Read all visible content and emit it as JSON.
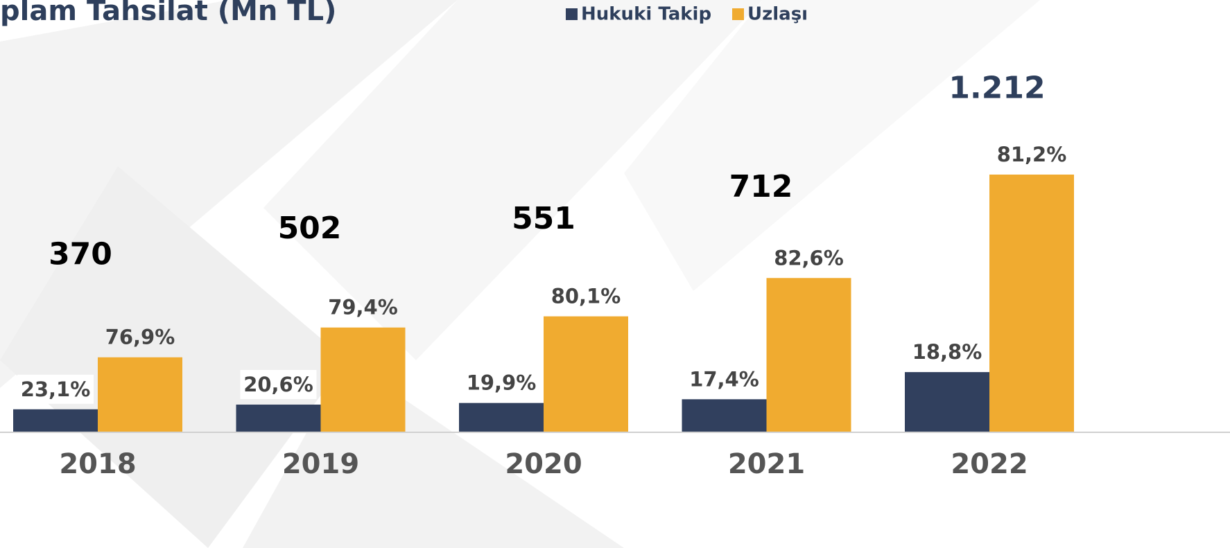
{
  "chart_data": {
    "type": "bar",
    "title": "plam Tahsilat (Mn TL)",
    "categories": [
      "2018",
      "2019",
      "2020",
      "2021",
      "2022"
    ],
    "totals": [
      370,
      502,
      551,
      712,
      1212
    ],
    "totals_labels": [
      "370",
      "502",
      "551",
      "712",
      "1.212"
    ],
    "series": [
      {
        "name": "Hukuki Takip",
        "color": "#31405e",
        "values": [
          23.1,
          20.6,
          19.9,
          17.4,
          18.8
        ],
        "value_labels": [
          "23,1%",
          "20,6%",
          "19,9%",
          "17,4%",
          "18,8%"
        ]
      },
      {
        "name": "Uzlaşı",
        "color": "#f0ab30",
        "values": [
          76.9,
          79.4,
          80.1,
          82.6,
          81.2
        ],
        "value_labels": [
          "76,9%",
          "79,4%",
          "80,1%",
          "82,6%",
          "81,2%"
        ]
      }
    ]
  }
}
